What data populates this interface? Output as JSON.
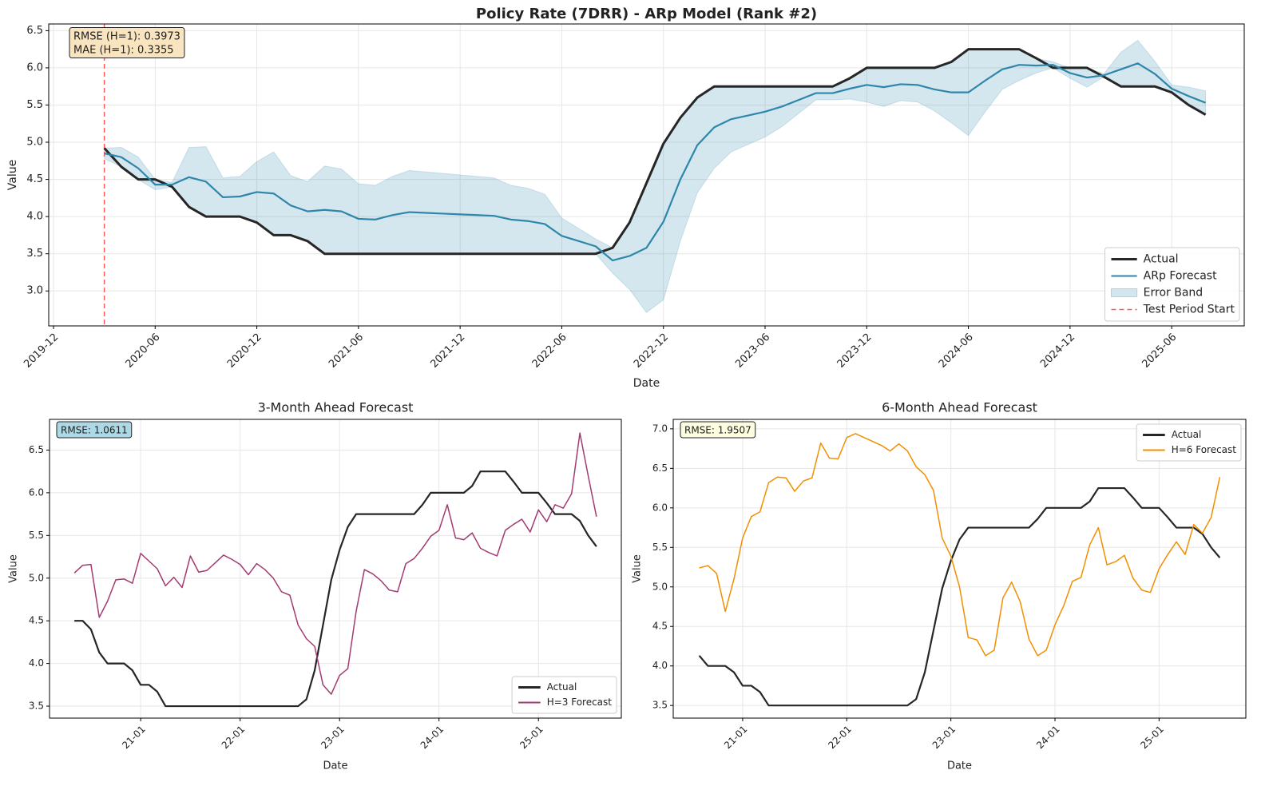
{
  "chart_data": [
    {
      "type": "line",
      "title": "Policy Rate (7DRR) - ARp Model (Rank #2)",
      "xlabel": "Date",
      "ylabel": "Value",
      "x": [
        "2020-03",
        "2020-04",
        "2020-05",
        "2020-06",
        "2020-07",
        "2020-08",
        "2020-09",
        "2020-10",
        "2020-11",
        "2020-12",
        "2021-01",
        "2021-02",
        "2021-03",
        "2021-04",
        "2021-05",
        "2021-06",
        "2021-07",
        "2021-08",
        "2021-09",
        "2021-10",
        "2021-11",
        "2021-12",
        "2022-01",
        "2022-02",
        "2022-03",
        "2022-04",
        "2022-05",
        "2022-06",
        "2022-07",
        "2022-08",
        "2022-09",
        "2022-10",
        "2022-11",
        "2022-12",
        "2023-01",
        "2023-02",
        "2023-03",
        "2023-04",
        "2023-05",
        "2023-06",
        "2023-07",
        "2023-08",
        "2023-09",
        "2023-10",
        "2023-11",
        "2023-12",
        "2024-01",
        "2024-02",
        "2024-03",
        "2024-04",
        "2024-05",
        "2024-06",
        "2024-07",
        "2024-08",
        "2024-09",
        "2024-10",
        "2024-11",
        "2024-12",
        "2025-01",
        "2025-02",
        "2025-03",
        "2025-04",
        "2025-05",
        "2025-06",
        "2025-07",
        "2025-08"
      ],
      "series": [
        {
          "name": "Actual",
          "color": "#262626",
          "values": [
            4.92,
            4.67,
            4.5,
            4.5,
            4.4,
            4.13,
            4.0,
            4.0,
            4.0,
            3.92,
            3.75,
            3.75,
            3.67,
            3.5,
            3.5,
            3.5,
            3.5,
            3.5,
            3.5,
            3.5,
            3.5,
            3.5,
            3.5,
            3.5,
            3.5,
            3.5,
            3.5,
            3.5,
            3.5,
            3.5,
            3.58,
            3.92,
            4.45,
            4.98,
            5.33,
            5.6,
            5.75,
            5.75,
            5.75,
            5.75,
            5.75,
            5.75,
            5.75,
            5.75,
            5.86,
            6.0,
            6.0,
            6.0,
            6.0,
            6.0,
            6.08,
            6.25,
            6.25,
            6.25,
            6.25,
            6.13,
            6.0,
            6.0,
            6.0,
            5.88,
            5.75,
            5.75,
            5.75,
            5.67,
            5.5,
            5.37
          ]
        },
        {
          "name": "ARp Forecast",
          "color": "#2e86ab",
          "values": [
            4.85,
            4.8,
            4.65,
            4.43,
            4.43,
            4.53,
            4.47,
            4.26,
            4.27,
            4.33,
            4.31,
            4.15,
            4.07,
            4.09,
            4.07,
            3.97,
            3.96,
            4.02,
            4.06,
            4.05,
            4.04,
            4.03,
            4.02,
            4.01,
            3.96,
            3.94,
            3.9,
            3.74,
            3.67,
            3.6,
            3.41,
            3.47,
            3.58,
            3.93,
            4.5,
            4.96,
            5.2,
            5.31,
            5.36,
            5.41,
            5.48,
            5.57,
            5.66,
            5.66,
            5.72,
            5.77,
            5.74,
            5.78,
            5.77,
            5.71,
            5.67,
            5.67,
            5.83,
            5.98,
            6.04,
            6.03,
            6.04,
            5.93,
            5.87,
            5.9,
            5.98,
            6.06,
            5.92,
            5.72,
            5.62,
            5.53
          ]
        }
      ],
      "band": {
        "name": "Error Band",
        "color": "#2e86ab",
        "lower": [
          4.78,
          4.67,
          4.5,
          4.36,
          4.4,
          4.13,
          4.0,
          4.0,
          4.0,
          3.92,
          3.75,
          3.75,
          3.67,
          3.5,
          3.5,
          3.5,
          3.5,
          3.5,
          3.5,
          3.5,
          3.5,
          3.5,
          3.5,
          3.5,
          3.5,
          3.5,
          3.5,
          3.5,
          3.5,
          3.5,
          3.24,
          3.02,
          2.71,
          2.88,
          3.67,
          4.32,
          4.65,
          4.87,
          4.97,
          5.07,
          5.21,
          5.39,
          5.57,
          5.57,
          5.58,
          5.54,
          5.48,
          5.56,
          5.54,
          5.42,
          5.26,
          5.09,
          5.41,
          5.71,
          5.83,
          5.93,
          6.0,
          5.86,
          5.74,
          5.88,
          5.75,
          5.75,
          5.75,
          5.67,
          5.5,
          5.37
        ],
        "upper": [
          4.92,
          4.93,
          4.8,
          4.5,
          4.46,
          4.93,
          4.94,
          4.52,
          4.54,
          4.74,
          4.87,
          4.55,
          4.47,
          4.68,
          4.64,
          4.44,
          4.42,
          4.54,
          4.62,
          4.6,
          4.58,
          4.56,
          4.54,
          4.52,
          4.42,
          4.38,
          4.3,
          3.98,
          3.84,
          3.7,
          3.58,
          3.92,
          4.45,
          4.98,
          5.33,
          5.6,
          5.75,
          5.75,
          5.75,
          5.75,
          5.75,
          5.75,
          5.75,
          5.75,
          5.86,
          6.0,
          6.0,
          6.0,
          6.0,
          6.0,
          6.08,
          6.25,
          6.25,
          6.25,
          6.25,
          6.13,
          6.08,
          6.0,
          6.0,
          5.92,
          6.21,
          6.37,
          6.09,
          5.77,
          5.74,
          5.69
        ]
      },
      "vline": {
        "name": "Test Period Start",
        "x": "2020-03",
        "color": "#ff5a5a"
      },
      "annotation": [
        "RMSE (H=1): 0.3973",
        "MAE (H=1): 0.3355"
      ],
      "annotation_color": "#f9e4c0",
      "xlim": [
        "2019-12",
        "2025-10"
      ],
      "xticks": [
        "2019-12",
        "2020-06",
        "2020-12",
        "2021-06",
        "2021-12",
        "2022-06",
        "2022-12",
        "2023-06",
        "2023-12",
        "2024-06",
        "2024-12",
        "2025-06"
      ],
      "ylim": [
        2.53,
        6.59
      ],
      "yticks": [
        {
          "value": 3,
          "label": "3.0"
        },
        3.5,
        {
          "value": 4,
          "label": "4.0"
        },
        4.5,
        {
          "value": 5,
          "label": "5.0"
        },
        5.5,
        {
          "value": 6,
          "label": "6.0"
        },
        6.5
      ],
      "grid": true,
      "legend": "lower right"
    },
    {
      "type": "line",
      "title": "3-Month Ahead Forecast",
      "xlabel": "Date",
      "ylabel": "Value",
      "x": [
        "2020-05",
        "2020-06",
        "2020-07",
        "2020-08",
        "2020-09",
        "2020-10",
        "2020-11",
        "2020-12",
        "2021-01",
        "2021-02",
        "2021-03",
        "2021-04",
        "2021-05",
        "2021-06",
        "2021-07",
        "2021-08",
        "2021-09",
        "2021-10",
        "2021-11",
        "2021-12",
        "2022-01",
        "2022-02",
        "2022-03",
        "2022-04",
        "2022-05",
        "2022-06",
        "2022-07",
        "2022-08",
        "2022-09",
        "2022-10",
        "2022-11",
        "2022-12",
        "2023-01",
        "2023-02",
        "2023-03",
        "2023-04",
        "2023-05",
        "2023-06",
        "2023-07",
        "2023-08",
        "2023-09",
        "2023-10",
        "2023-11",
        "2023-12",
        "2024-01",
        "2024-02",
        "2024-03",
        "2024-04",
        "2024-05",
        "2024-06",
        "2024-07",
        "2024-08",
        "2024-09",
        "2024-10",
        "2024-11",
        "2024-12",
        "2025-01",
        "2025-02",
        "2025-03",
        "2025-04",
        "2025-05",
        "2025-06",
        "2025-07",
        "2025-08"
      ],
      "series": [
        {
          "name": "Actual",
          "color": "#262626",
          "values": [
            4.5,
            4.5,
            4.4,
            4.13,
            4.0,
            4.0,
            4.0,
            3.92,
            3.75,
            3.75,
            3.67,
            3.5,
            3.5,
            3.5,
            3.5,
            3.5,
            3.5,
            3.5,
            3.5,
            3.5,
            3.5,
            3.5,
            3.5,
            3.5,
            3.5,
            3.5,
            3.5,
            3.5,
            3.58,
            3.92,
            4.45,
            4.98,
            5.33,
            5.6,
            5.75,
            5.75,
            5.75,
            5.75,
            5.75,
            5.75,
            5.75,
            5.75,
            5.86,
            6.0,
            6.0,
            6.0,
            6.0,
            6.0,
            6.08,
            6.25,
            6.25,
            6.25,
            6.25,
            6.13,
            6.0,
            6.0,
            6.0,
            5.88,
            5.75,
            5.75,
            5.75,
            5.67,
            5.5,
            5.37
          ]
        },
        {
          "name": "H=3 Forecast",
          "color": "#a23b72",
          "values": [
            5.06,
            5.15,
            5.16,
            4.54,
            4.73,
            4.98,
            4.99,
            4.94,
            5.29,
            5.2,
            5.11,
            4.91,
            5.01,
            4.89,
            5.26,
            5.07,
            5.09,
            5.18,
            5.27,
            5.22,
            5.16,
            5.04,
            5.17,
            5.1,
            5.0,
            4.84,
            4.8,
            4.45,
            4.29,
            4.2,
            3.75,
            3.64,
            3.86,
            3.94,
            4.61,
            5.1,
            5.05,
            4.97,
            4.86,
            4.84,
            5.17,
            5.23,
            5.35,
            5.49,
            5.56,
            5.86,
            5.47,
            5.45,
            5.53,
            5.35,
            5.3,
            5.26,
            5.56,
            5.63,
            5.69,
            5.54,
            5.8,
            5.66,
            5.86,
            5.82,
            5.99,
            6.7,
            6.2,
            5.72
          ]
        }
      ],
      "annotation": [
        "RMSE: 1.0611"
      ],
      "annotation_color": "#add8e6",
      "xlim": [
        "2020-02",
        "2025-11"
      ],
      "xticks": [
        {
          "value": "2021-01",
          "label": "21-01"
        },
        {
          "value": "2022-01",
          "label": "22-01"
        },
        {
          "value": "2023-01",
          "label": "23-01"
        },
        {
          "value": "2024-01",
          "label": "24-01"
        },
        {
          "value": "2025-01",
          "label": "25-01"
        }
      ],
      "ylim": [
        3.36,
        6.86
      ],
      "yticks": [
        3.5,
        {
          "value": 4,
          "label": "4.0"
        },
        4.5,
        {
          "value": 5,
          "label": "5.0"
        },
        5.5,
        {
          "value": 6,
          "label": "6.0"
        },
        6.5
      ],
      "grid": true,
      "legend": "lower right"
    },
    {
      "type": "line",
      "title": "6-Month Ahead Forecast",
      "xlabel": "Date",
      "ylabel": "Value",
      "x": [
        "2020-08",
        "2020-09",
        "2020-10",
        "2020-11",
        "2020-12",
        "2021-01",
        "2021-02",
        "2021-03",
        "2021-04",
        "2021-05",
        "2021-06",
        "2021-07",
        "2021-08",
        "2021-09",
        "2021-10",
        "2021-11",
        "2021-12",
        "2022-01",
        "2022-02",
        "2022-03",
        "2022-04",
        "2022-05",
        "2022-06",
        "2022-07",
        "2022-08",
        "2022-09",
        "2022-10",
        "2022-11",
        "2022-12",
        "2023-01",
        "2023-02",
        "2023-03",
        "2023-04",
        "2023-05",
        "2023-06",
        "2023-07",
        "2023-08",
        "2023-09",
        "2023-10",
        "2023-11",
        "2023-12",
        "2024-01",
        "2024-02",
        "2024-03",
        "2024-04",
        "2024-05",
        "2024-06",
        "2024-07",
        "2024-08",
        "2024-09",
        "2024-10",
        "2024-11",
        "2024-12",
        "2025-01",
        "2025-02",
        "2025-03",
        "2025-04",
        "2025-05",
        "2025-06",
        "2025-07",
        "2025-08"
      ],
      "series": [
        {
          "name": "Actual",
          "color": "#262626",
          "values": [
            4.13,
            4.0,
            4.0,
            4.0,
            3.92,
            3.75,
            3.75,
            3.67,
            3.5,
            3.5,
            3.5,
            3.5,
            3.5,
            3.5,
            3.5,
            3.5,
            3.5,
            3.5,
            3.5,
            3.5,
            3.5,
            3.5,
            3.5,
            3.5,
            3.5,
            3.58,
            3.92,
            4.45,
            4.98,
            5.33,
            5.6,
            5.75,
            5.75,
            5.75,
            5.75,
            5.75,
            5.75,
            5.75,
            5.75,
            5.86,
            6.0,
            6.0,
            6.0,
            6.0,
            6.0,
            6.08,
            6.25,
            6.25,
            6.25,
            6.25,
            6.13,
            6.0,
            6.0,
            6.0,
            5.88,
            5.75,
            5.75,
            5.75,
            5.67,
            5.5,
            5.37
          ]
        },
        {
          "name": "H=6 Forecast",
          "color": "#f18f01",
          "values": [
            5.24,
            5.27,
            5.17,
            4.69,
            5.1,
            5.62,
            5.89,
            5.95,
            6.32,
            6.39,
            6.38,
            6.21,
            6.34,
            6.38,
            6.82,
            6.63,
            6.62,
            6.89,
            6.94,
            6.89,
            6.84,
            6.79,
            6.72,
            6.81,
            6.72,
            6.52,
            6.42,
            6.22,
            5.62,
            5.39,
            5.0,
            4.36,
            4.33,
            4.13,
            4.2,
            4.86,
            5.06,
            4.81,
            4.34,
            4.13,
            4.2,
            4.52,
            4.76,
            5.07,
            5.12,
            5.53,
            5.75,
            5.28,
            5.32,
            5.4,
            5.11,
            4.96,
            4.93,
            5.23,
            5.41,
            5.57,
            5.41,
            5.79,
            5.68,
            5.88,
            6.39
          ]
        }
      ],
      "annotation": [
        "RMSE: 1.9507"
      ],
      "annotation_color": "#fdfde0",
      "xlim": [
        "2020-05",
        "2025-11"
      ],
      "xticks": [
        {
          "value": "2021-01",
          "label": "21-01"
        },
        {
          "value": "2022-01",
          "label": "22-01"
        },
        {
          "value": "2023-01",
          "label": "23-01"
        },
        {
          "value": "2024-01",
          "label": "24-01"
        },
        {
          "value": "2025-01",
          "label": "25-01"
        }
      ],
      "ylim": [
        3.34,
        7.12
      ],
      "yticks": [
        3.5,
        {
          "value": 4,
          "label": "4.0"
        },
        4.5,
        {
          "value": 5,
          "label": "5.0"
        },
        5.5,
        {
          "value": 6,
          "label": "6.0"
        },
        6.5,
        {
          "value": 7,
          "label": "7.0"
        }
      ],
      "grid": true,
      "legend": "upper right"
    }
  ]
}
